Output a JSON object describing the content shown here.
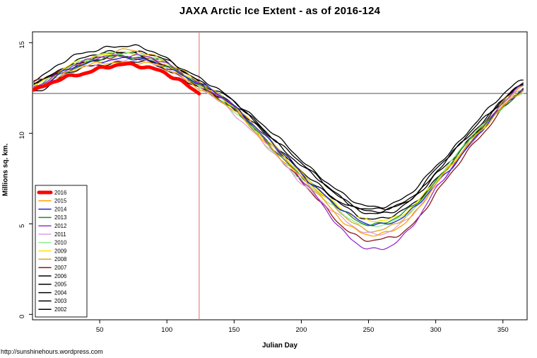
{
  "page": {
    "title": "JAXA Arctic Ice Extent - as of 2016-124",
    "footer": "http://sunshinehours.wordpress.com"
  },
  "chart_data": {
    "type": "line",
    "title": "JAXA Arctic Ice Extent - as of 2016-124",
    "xlabel": "Julian Day",
    "ylabel": "Millions sq. km.",
    "xlim": [
      0,
      368
    ],
    "ylim": [
      -0.3,
      15.6
    ],
    "x_ticks": [
      50,
      100,
      150,
      200,
      250,
      300,
      350
    ],
    "y_ticks": [
      0,
      5,
      10,
      15
    ],
    "grid": false,
    "legend_position": "bottom-left",
    "vline": {
      "x": 124,
      "color": "#e07a7a"
    },
    "hline": {
      "y": 12.2,
      "color": "#3a3a3a"
    },
    "days": [
      1,
      30,
      60,
      90,
      120,
      150,
      180,
      210,
      240,
      260,
      280,
      300,
      330,
      365
    ],
    "series": [
      {
        "name": "2016",
        "color": "#FF0000",
        "width": 5,
        "points": [
          [
            1,
            12.35
          ],
          [
            20,
            12.95
          ],
          [
            40,
            13.4
          ],
          [
            60,
            13.7
          ],
          [
            75,
            13.75
          ],
          [
            90,
            13.6
          ],
          [
            105,
            13.1
          ],
          [
            124,
            12.2
          ]
        ]
      },
      {
        "name": "2015",
        "color": "#FFA500",
        "values": [
          12.5,
          13.5,
          13.9,
          13.8,
          12.7,
          11.2,
          9.0,
          6.8,
          4.7,
          4.4,
          5.3,
          7.2,
          9.9,
          12.3
        ]
      },
      {
        "name": "2014",
        "color": "#2222CC",
        "values": [
          12.5,
          13.6,
          14.1,
          13.9,
          12.9,
          11.5,
          9.3,
          7.1,
          5.3,
          5.0,
          5.6,
          7.2,
          9.8,
          12.4
        ]
      },
      {
        "name": "2013",
        "color": "#228B22",
        "values": [
          12.4,
          13.6,
          14.2,
          14.0,
          12.8,
          11.3,
          9.1,
          7.0,
          5.3,
          5.0,
          5.8,
          7.4,
          10.0,
          12.3
        ]
      },
      {
        "name": "2012",
        "color": "#9932CC",
        "values": [
          12.6,
          13.7,
          14.3,
          14.1,
          12.9,
          11.4,
          9.1,
          6.6,
          4.0,
          3.6,
          4.7,
          6.9,
          9.9,
          12.6
        ]
      },
      {
        "name": "2011",
        "color": "#DDA0DD",
        "values": [
          12.4,
          13.5,
          14.0,
          13.9,
          12.7,
          11.1,
          8.8,
          6.6,
          4.8,
          4.5,
          5.3,
          7.1,
          9.8,
          12.5
        ]
      },
      {
        "name": "2010",
        "color": "#90EE90",
        "values": [
          12.5,
          13.8,
          14.4,
          14.2,
          12.8,
          11.2,
          8.9,
          6.8,
          5.2,
          4.9,
          5.6,
          7.4,
          10.1,
          12.2
        ]
      },
      {
        "name": "2009",
        "color": "#F5E500",
        "values": [
          12.7,
          13.8,
          14.4,
          14.1,
          12.9,
          11.4,
          9.2,
          7.1,
          5.4,
          5.2,
          5.8,
          7.4,
          9.9,
          12.4
        ]
      },
      {
        "name": "2008",
        "color": "#DAA520",
        "values": [
          12.4,
          13.7,
          14.5,
          14.3,
          13.0,
          11.5,
          9.3,
          7.0,
          5.0,
          4.7,
          5.5,
          7.3,
          10.0,
          12.7
        ]
      },
      {
        "name": "2007",
        "color": "#8B1A1A",
        "values": [
          12.8,
          13.8,
          14.2,
          14.0,
          12.8,
          11.3,
          9.0,
          6.5,
          4.4,
          4.1,
          4.8,
          6.7,
          9.6,
          12.3
        ]
      },
      {
        "name": "2006",
        "color": "#000000",
        "values": [
          12.3,
          13.4,
          13.9,
          13.8,
          12.7,
          11.3,
          9.2,
          7.2,
          5.8,
          5.6,
          6.2,
          7.7,
          10.1,
          12.8
        ]
      },
      {
        "name": "2005",
        "color": "#000000",
        "values": [
          12.6,
          13.7,
          14.2,
          14.0,
          12.9,
          11.5,
          9.4,
          7.3,
          5.6,
          5.3,
          5.9,
          7.5,
          10.0,
          12.4
        ]
      },
      {
        "name": "2004",
        "color": "#000000",
        "values": [
          12.8,
          13.9,
          14.5,
          14.3,
          13.1,
          11.7,
          9.7,
          7.7,
          6.0,
          5.8,
          6.4,
          8.0,
          10.3,
          12.6
        ]
      },
      {
        "name": "2003",
        "color": "#000000",
        "values": [
          13.0,
          14.2,
          14.8,
          14.5,
          13.2,
          11.8,
          9.9,
          7.9,
          6.2,
          6.0,
          6.6,
          8.2,
          10.6,
          13.0
        ]
      },
      {
        "name": "2002",
        "color": "#000000",
        "values": [
          12.7,
          13.8,
          14.4,
          14.2,
          13.0,
          11.6,
          9.6,
          7.6,
          6.0,
          5.7,
          6.3,
          7.9,
          10.4,
          12.7
        ]
      }
    ]
  }
}
